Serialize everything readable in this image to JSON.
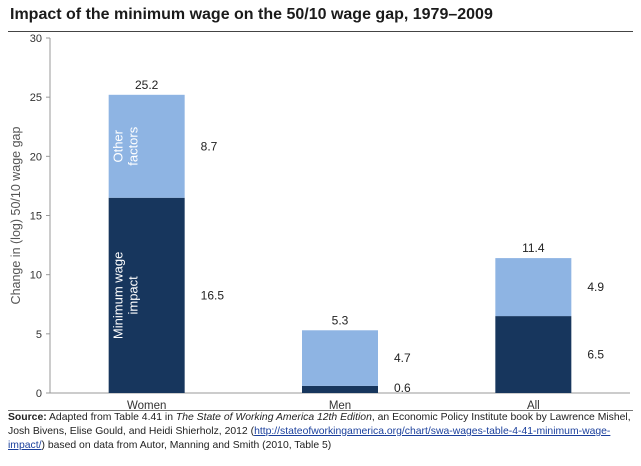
{
  "chart_data": {
    "type": "bar",
    "stacked": true,
    "title": "Impact of the minimum wage on the 50/10 wage gap, 1979–2009",
    "ylabel": "Change in (log) 50/10 wage gap",
    "xlabel": "",
    "ylim": [
      0,
      30
    ],
    "yticks": [
      "0",
      "5",
      "10",
      "15",
      "20",
      "25",
      "30"
    ],
    "categories": [
      "Women",
      "Men",
      "All"
    ],
    "series": [
      {
        "name": "Minimum wage impact",
        "values": [
          16.5,
          0.6,
          6.5
        ],
        "color": "#17365d"
      },
      {
        "name": "Other factors",
        "values": [
          8.7,
          4.7,
          4.9
        ],
        "color": "#8eb4e3"
      }
    ],
    "totals": [
      25.2,
      5.3,
      11.4
    ],
    "segment_labels": {
      "min_wage": [
        "16.5",
        "0.6",
        "6.5"
      ],
      "other": [
        "8.7",
        "4.7",
        "4.9"
      ],
      "totals": [
        "25.2",
        "5.3",
        "11.4"
      ]
    },
    "inbar_labels": {
      "other": [
        "Other",
        "factors"
      ],
      "min_wage": [
        "Minimum wage",
        "impact"
      ]
    },
    "grid": false,
    "legend": "none"
  },
  "footer": {
    "source_label": "Source:",
    "text_1": " Adapted from Table 4.41 in ",
    "book_title": "The State of Working America 12th Edition",
    "text_2": ", an Economic Policy Institute book by Lawrence Mishel, Josh Bivens, Elise Gould, and Heidi Shierholz, 2012 (",
    "link": "http://stateofworkingamerica.org/chart/swa-wages-table-4-41-minimum-wage-impact/",
    "text_3": ") based on data from Autor, Manning and Smith (2010, Table 5)"
  }
}
